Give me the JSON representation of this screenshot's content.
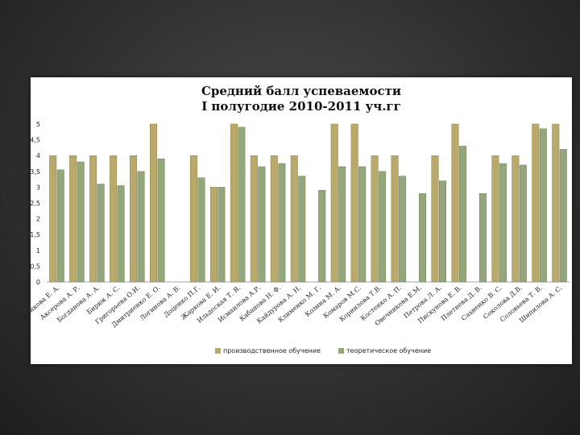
{
  "chart_data": {
    "type": "bar",
    "title": [
      "Средний балл успеваемости",
      "I полугодие 2010-2011 уч.гг"
    ],
    "xlabel": "",
    "ylabel": "",
    "ylim": [
      0,
      5
    ],
    "yticks": [
      "0",
      "0,5",
      "1",
      "1,5",
      "2",
      "2,5",
      "3",
      "3,5",
      "4",
      "4,5",
      "5"
    ],
    "grid": false,
    "legend_position": "bottom",
    "categories": [
      "Андроникова Е. А.",
      "Аксерова А. Р.",
      "Богданова А. А.",
      "Бирюк А. С.",
      "Григорьева О.И.",
      "Дмитриенко Е. О.",
      "Логинова А. В.",
      "Доценко П.Г.",
      "Жаркова Е. И.",
      "Ильдеская Т. Я.",
      "Исмаилова А.Р.",
      "Кабанова Н. Ф.",
      "Кайдурова А. Н.",
      "Клименко М. Г.",
      "Козина М. А.",
      "Комаров М.С.",
      "Корнилова Т.В.",
      "Костенко А. П.",
      "Овечникова Е.М.",
      "Петрова Л. А.",
      "Пискунова Е. В.",
      "Плетнева Д. В.",
      "Сахненко В. С.",
      "Соколова Д.В.",
      "Соловьева Т. В.",
      "Шипилова А. С."
    ],
    "series": [
      {
        "name": "производственное обучение",
        "color": "#b9a96a",
        "values": [
          4,
          4,
          4,
          4,
          4,
          5,
          0,
          4,
          3,
          5,
          4,
          4,
          4,
          0,
          5,
          5,
          4,
          4,
          0,
          4,
          5,
          0,
          4,
          4,
          5,
          5
        ]
      },
      {
        "name": "теоретическое обучение",
        "color": "#94a67c",
        "values": [
          3.55,
          3.8,
          3.1,
          3.05,
          3.5,
          3.9,
          0,
          3.3,
          3.0,
          4.9,
          3.65,
          3.75,
          3.35,
          2.9,
          3.65,
          3.65,
          3.5,
          3.35,
          2.8,
          3.2,
          4.3,
          2.8,
          3.75,
          3.7,
          4.85,
          4.2
        ]
      }
    ]
  }
}
